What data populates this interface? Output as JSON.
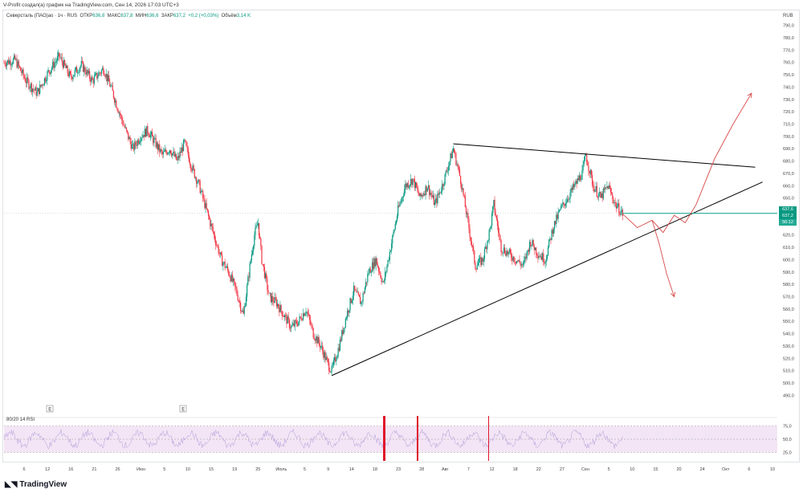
{
  "header": {
    "text": "V-Profit создал(а) график на TradingView.com, Сен 14, 2026 17:03 UTC+3"
  },
  "legend": {
    "symbol": "Северсталь (ПАО)ао · 1ч · RUS",
    "open_label": "ОТКР",
    "open": "636,8",
    "high_label": "МАКС",
    "high": "637,8",
    "low_label": "МИН",
    "low": "636,6",
    "close_label": "ЗАКР",
    "close": "637,2",
    "change": "+0,2 (+0,03%)",
    "volume_label": "Объём",
    "volume": "3,14 K"
  },
  "currency": "RUB",
  "price_tags": {
    "current": "637,6",
    "last": "637,2",
    "countdown": "56:12"
  },
  "earnings_markers": [
    "E",
    "E"
  ],
  "rsi": {
    "label": "80/20 14 RSI",
    "levels": [
      "75,0",
      "50,0",
      "25,0"
    ]
  },
  "brand": {
    "name": "TradingView",
    "icon": "tradingview-logo-icon"
  },
  "colors": {
    "up": "#089981",
    "down": "#f23645",
    "trendline": "#000000",
    "arrow": "#d94a4a",
    "level": "#22ab94",
    "rsi_band": "#f3e5f5",
    "rsi_line": "#b39ddb"
  },
  "chart_data": {
    "type": "candlestick",
    "title": "",
    "xlabel": "",
    "ylabel": "",
    "ylim": [
      485,
      795
    ],
    "yticks": [
      490,
      500,
      510,
      520,
      530,
      540,
      550,
      560,
      570,
      580,
      590,
      600,
      610,
      620,
      630,
      640,
      650,
      660,
      670,
      680,
      690,
      700,
      710,
      720,
      730,
      740,
      750,
      760,
      770,
      780,
      790
    ],
    "xtick_labels": [
      "6",
      "12",
      "16",
      "21",
      "26",
      "Июн",
      "5",
      "10",
      "15",
      "19",
      "25",
      "Июль",
      "5",
      "9",
      "14",
      "18",
      "23",
      "28",
      "Авг",
      "7",
      "12",
      "18",
      "22",
      "27",
      "Сен",
      "5",
      "10",
      "15",
      "20",
      "24",
      "Окт",
      "6",
      "10"
    ],
    "price_path": [
      [
        0,
        760
      ],
      [
        3,
        762
      ],
      [
        6,
        745
      ],
      [
        9,
        735
      ],
      [
        12,
        752
      ],
      [
        15,
        765
      ],
      [
        18,
        748
      ],
      [
        21,
        758
      ],
      [
        24,
        745
      ],
      [
        27,
        755
      ],
      [
        29,
        740
      ],
      [
        31,
        722
      ],
      [
        33,
        705
      ],
      [
        35,
        690
      ],
      [
        37,
        700
      ],
      [
        39,
        705
      ],
      [
        41,
        695
      ],
      [
        43,
        685
      ],
      [
        45,
        690
      ],
      [
        47,
        680
      ],
      [
        49,
        695
      ],
      [
        51,
        675
      ],
      [
        53,
        660
      ],
      [
        55,
        640
      ],
      [
        57,
        620
      ],
      [
        59,
        600
      ],
      [
        61,
        590
      ],
      [
        63,
        575
      ],
      [
        65,
        555
      ],
      [
        67,
        600
      ],
      [
        68,
        620
      ],
      [
        69,
        630
      ],
      [
        70,
        600
      ],
      [
        72,
        570
      ],
      [
        74,
        565
      ],
      [
        76,
        555
      ],
      [
        78,
        545
      ],
      [
        80,
        550
      ],
      [
        82,
        560
      ],
      [
        84,
        540
      ],
      [
        86,
        530
      ],
      [
        88,
        515
      ],
      [
        89,
        510
      ],
      [
        91,
        530
      ],
      [
        93,
        555
      ],
      [
        95,
        575
      ],
      [
        97,
        565
      ],
      [
        99,
        590
      ],
      [
        101,
        600
      ],
      [
        103,
        580
      ],
      [
        105,
        610
      ],
      [
        107,
        640
      ],
      [
        109,
        660
      ],
      [
        111,
        665
      ],
      [
        113,
        650
      ],
      [
        115,
        660
      ],
      [
        117,
        645
      ],
      [
        119,
        660
      ],
      [
        121,
        680
      ],
      [
        122,
        690
      ],
      [
        124,
        665
      ],
      [
        126,
        630
      ],
      [
        128,
        595
      ],
      [
        130,
        600
      ],
      [
        132,
        625
      ],
      [
        133,
        645
      ],
      [
        135,
        610
      ],
      [
        137,
        605
      ],
      [
        139,
        600
      ],
      [
        141,
        595
      ],
      [
        143,
        615
      ],
      [
        145,
        605
      ],
      [
        147,
        600
      ],
      [
        149,
        625
      ],
      [
        151,
        640
      ],
      [
        153,
        650
      ],
      [
        155,
        660
      ],
      [
        157,
        670
      ],
      [
        158,
        685
      ],
      [
        160,
        660
      ],
      [
        162,
        650
      ],
      [
        164,
        660
      ],
      [
        166,
        645
      ],
      [
        168,
        637
      ]
    ],
    "trendlines": [
      {
        "name": "",
        "from": [
          122,
          694
        ],
        "to": [
          204,
          675
        ]
      },
      {
        "name": "",
        "from": [
          89,
          506
        ],
        "to": [
          206,
          663
        ]
      }
    ],
    "horizontal_level": 637.6,
    "projection_arrows": [
      {
        "path": [
          [
            168,
            637
          ],
          [
            172,
            626
          ],
          [
            176,
            632
          ],
          [
            179,
            622
          ],
          [
            182,
            636
          ],
          [
            185,
            630
          ],
          [
            188,
            645
          ],
          [
            193,
            682
          ],
          [
            198,
            710
          ],
          [
            203,
            735
          ]
        ]
      },
      {
        "path": [
          [
            176,
            632
          ],
          [
            178,
            612
          ],
          [
            180,
            588
          ],
          [
            182,
            570
          ]
        ]
      }
    ],
    "rsi_levels": [
      75,
      50,
      25
    ],
    "rsi_range": [
      15,
      85
    ]
  }
}
